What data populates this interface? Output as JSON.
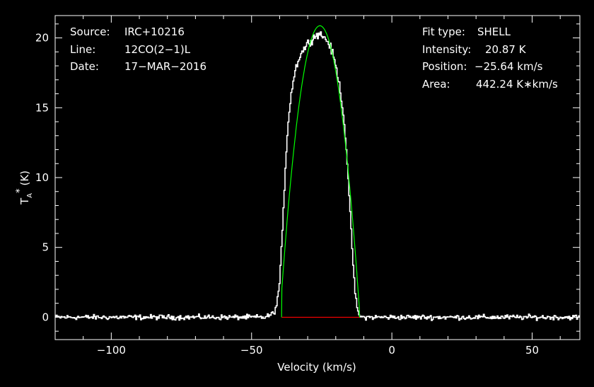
{
  "chart_data": {
    "type": "line",
    "xlabel": "Velocity (km/s)",
    "ylabel": "T",
    "ylabel_sub": "A",
    "ylabel_sup": "*",
    "ylabel_unit": "(K)",
    "xlim": [
      -120,
      67
    ],
    "ylim": [
      -1.6,
      21.6
    ],
    "xticks": [
      -100,
      -50,
      0,
      50
    ],
    "xtick_labels": [
      "−100",
      "−50",
      "0",
      "50"
    ],
    "yticks": [
      0,
      5,
      10,
      15,
      20
    ],
    "ytick_labels": [
      "0",
      "5",
      "10",
      "15",
      "20"
    ],
    "grid": false,
    "info_left": [
      {
        "key": "Source:",
        "value": "IRC+10216"
      },
      {
        "key": "Line:",
        "value": "12CO(2−1)L"
      },
      {
        "key": "Date:",
        "value": "17−MAR−2016"
      }
    ],
    "info_right": [
      {
        "key": "Fit type:",
        "value": "SHELL"
      },
      {
        "key": "Intensity:",
        "value": "20.87 K"
      },
      {
        "key": "Position:",
        "value": "−25.64 km/s"
      },
      {
        "key": "Area:",
        "value": "442.24 K∗km/s"
      }
    ],
    "series": [
      {
        "role": "observed spectrum",
        "color": "#ffffff",
        "x": [
          -120,
          -110,
          -100,
          -90,
          -80,
          -70,
          -60,
          -50,
          -45,
          -42,
          -41,
          -40,
          -39,
          -38,
          -37,
          -36,
          -35,
          -34,
          -33,
          -32,
          -31,
          -30,
          -29,
          -28,
          -27,
          -26,
          -25,
          -24,
          -23,
          -22,
          -21,
          -20,
          -19,
          -18,
          -17,
          -16,
          -15,
          -14,
          -13,
          -12,
          -11,
          -10,
          0,
          10,
          20,
          30,
          40,
          50,
          60,
          67
        ],
        "y": [
          0,
          0,
          0,
          0,
          0,
          0,
          0,
          0,
          0,
          0.3,
          0.9,
          2.5,
          6,
          10.5,
          13.8,
          15.8,
          17.1,
          18.0,
          18.6,
          19.0,
          19.3,
          19.6,
          19.8,
          20.0,
          20.2,
          20.3,
          20.2,
          20.0,
          19.8,
          19.4,
          18.8,
          18.0,
          17.0,
          15.8,
          14.0,
          11.5,
          8.0,
          4.5,
          1.5,
          0.3,
          0,
          0,
          0,
          0,
          0,
          0,
          0,
          0,
          0,
          0
        ]
      },
      {
        "role": "shell fit",
        "color": "#00ff00",
        "center": -25.64,
        "peak": 20.87,
        "x_min": -39.3,
        "x_max": -11.5
      },
      {
        "role": "fit baseline",
        "color": "#ff0000",
        "x": [
          -39.3,
          -11.5
        ],
        "y": [
          0,
          0
        ]
      }
    ],
    "noise_rms": 0.12
  }
}
